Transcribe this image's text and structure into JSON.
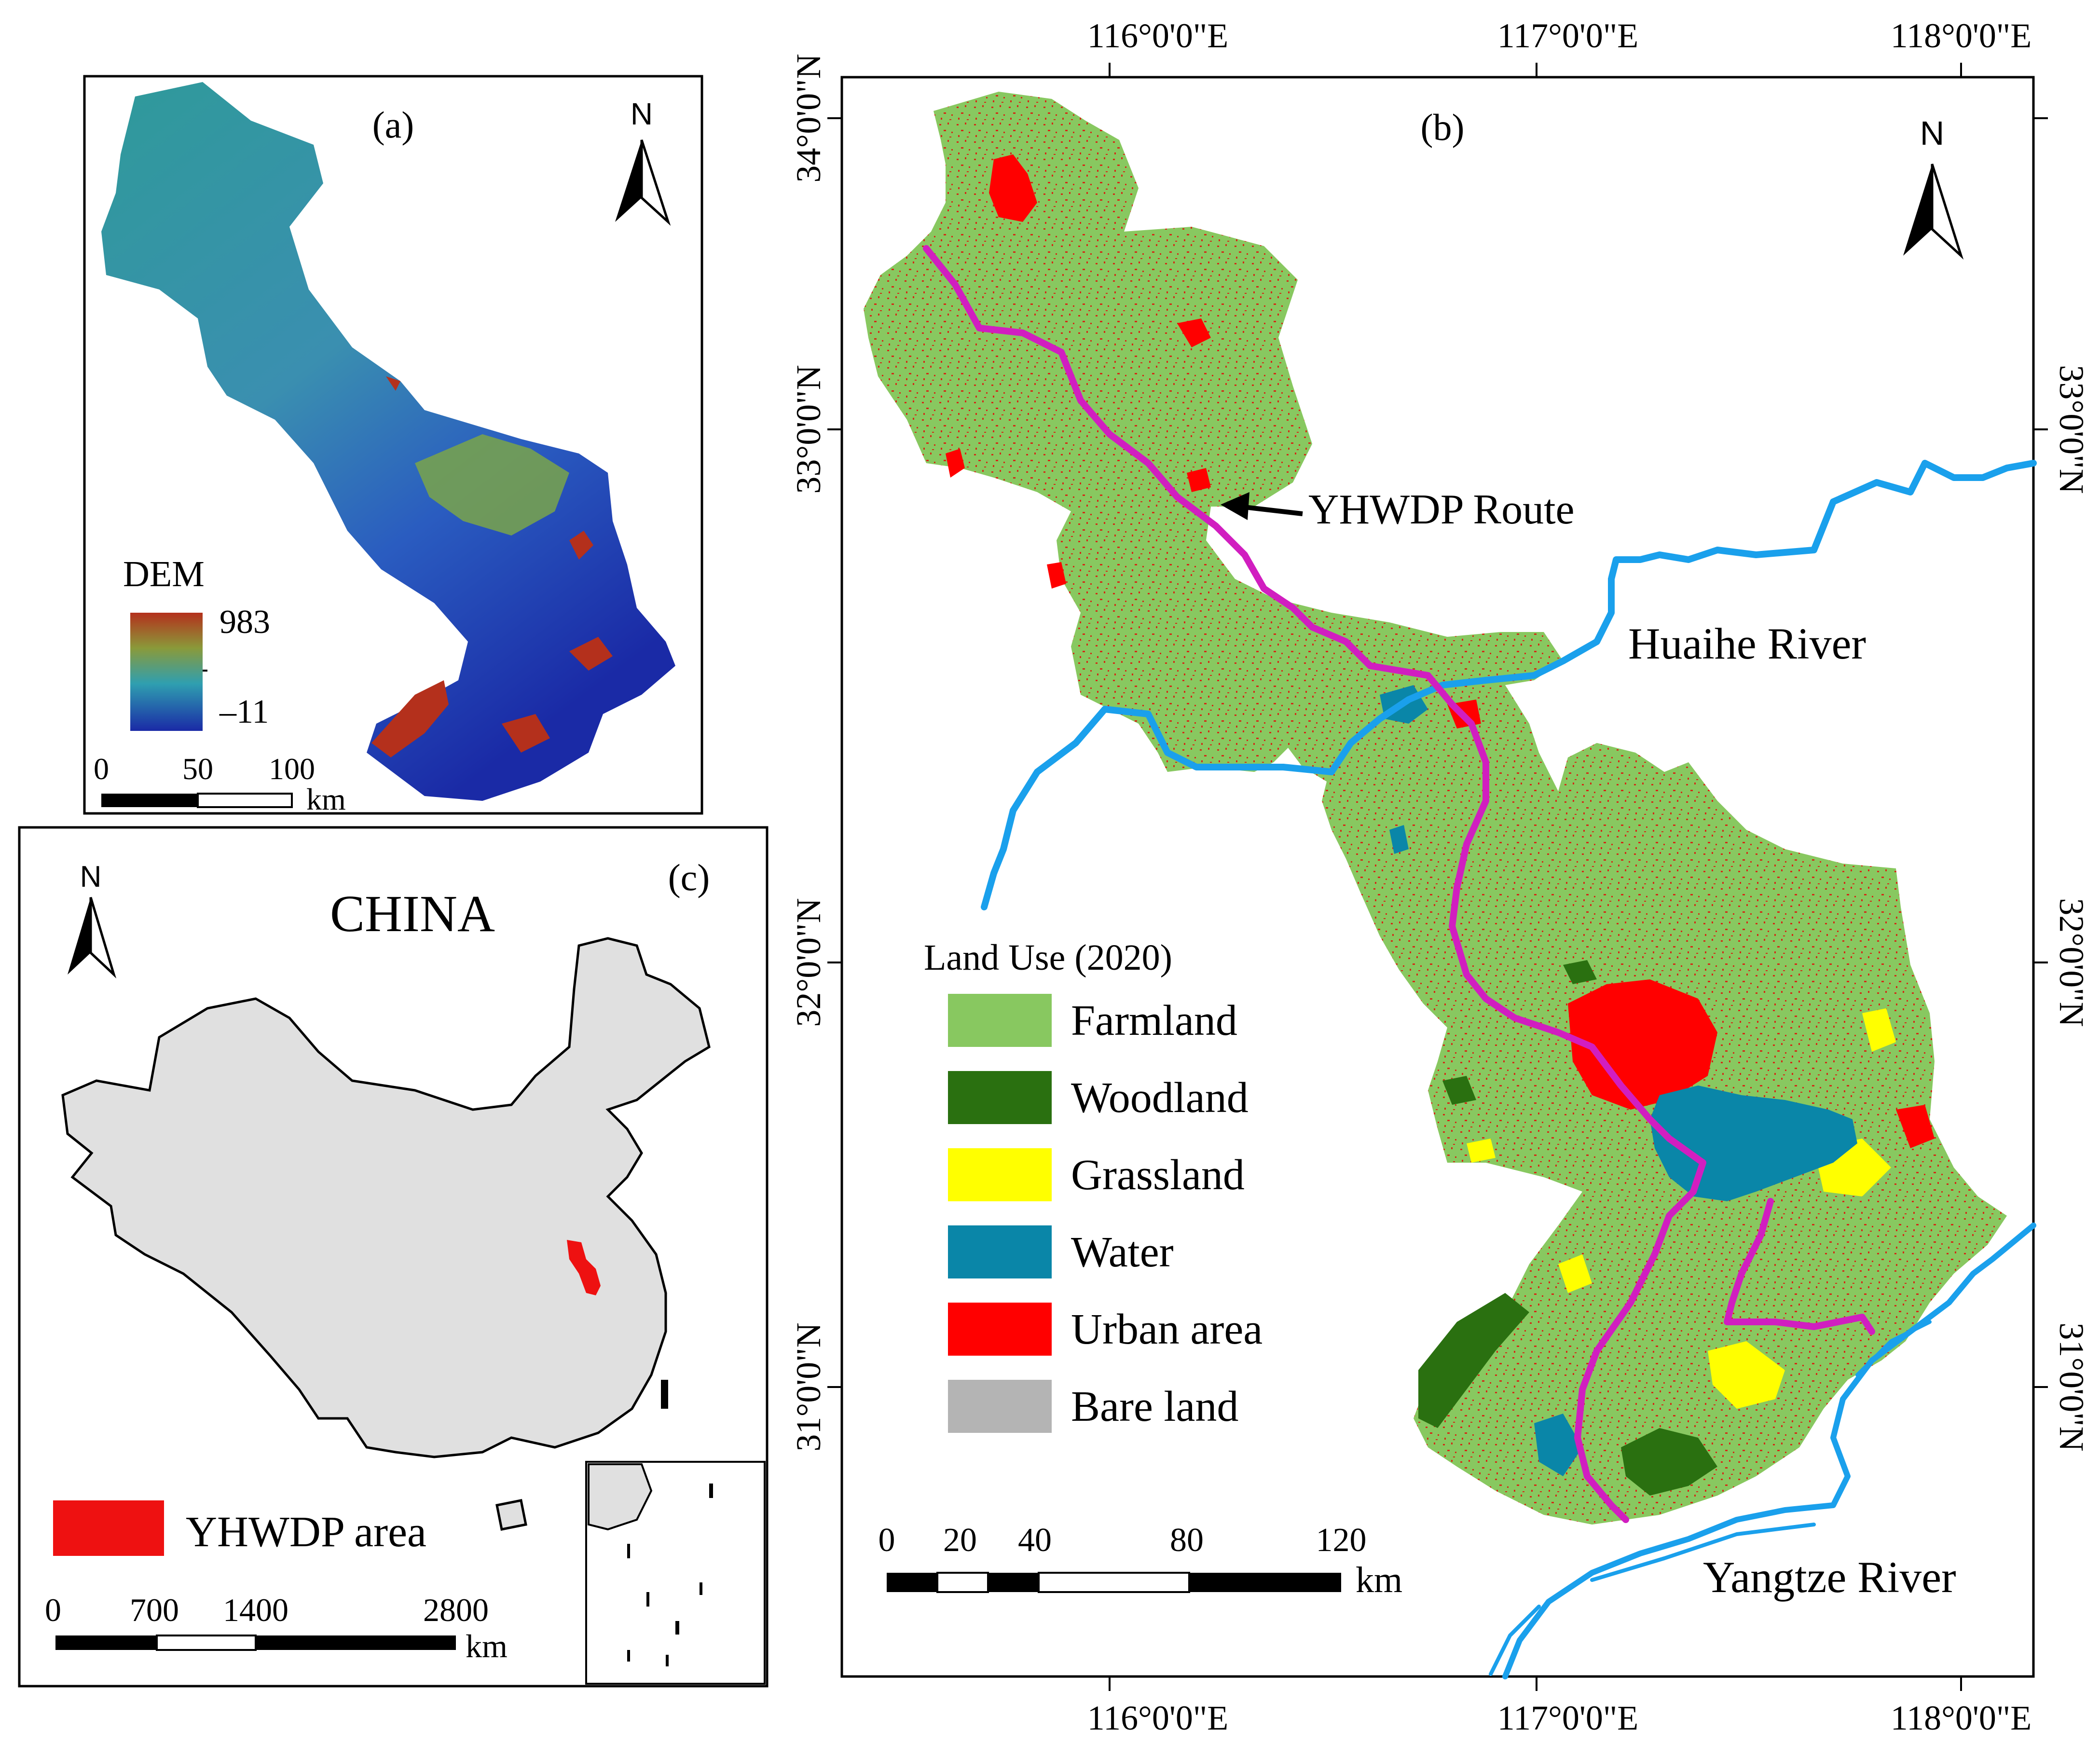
{
  "panel_a": {
    "label": "(a)",
    "north": "N",
    "legend_title": "DEM",
    "legend_max": "983",
    "legend_min": "–11",
    "scale_ticks": [
      "0",
      "50",
      "100"
    ],
    "scale_unit": "km",
    "colors": {
      "low": "#1a2aa6",
      "mid1": "#2f8fb8",
      "mid2": "#79a84a",
      "high": "#b4301c"
    }
  },
  "panel_b": {
    "label": "(b)",
    "north": "N",
    "lon_labels": [
      "116°0'0\"E",
      "117°0'0\"E",
      "118°0'0\"E"
    ],
    "lat_labels": [
      "34°0'0\"N",
      "33°0'0\"N",
      "32°0'0\"N",
      "31°0'0\"N"
    ],
    "route_label": "YHWDP Route",
    "river_huaihe": "Huaihe River",
    "river_yangtze": "Yangtze River",
    "legend_title": "Land Use (2020)",
    "legend_items": [
      {
        "label": "Farmland",
        "color": "#88c860"
      },
      {
        "label": "Woodland",
        "color": "#2a7010"
      },
      {
        "label": "Grassland",
        "color": "#ffff00"
      },
      {
        "label": "Water",
        "color": "#0a86a8"
      },
      {
        "label": "Urban area",
        "color": "#ff0000"
      },
      {
        "label": "Bare land",
        "color": "#b4b4b4"
      }
    ],
    "scale_ticks": [
      "0",
      "20",
      "40",
      "80",
      "120"
    ],
    "scale_unit": "km",
    "colors": {
      "route": "#d11ec0",
      "river": "#1aa0ec",
      "urban_dots": "#d42a16"
    }
  },
  "panel_c": {
    "label": "(c)",
    "north": "N",
    "country_label": "CHINA",
    "legend_label": "YHWDP area",
    "legend_color": "#ee1111",
    "scale_ticks": [
      "0",
      "700",
      "1400",
      "2800"
    ],
    "scale_unit": "km",
    "colors": {
      "land": "#e0e0e0"
    }
  }
}
